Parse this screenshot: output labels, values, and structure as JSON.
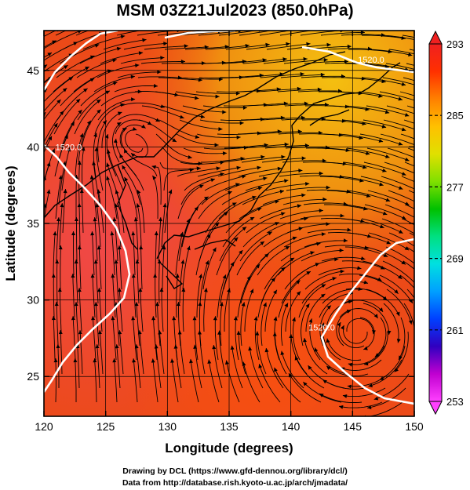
{
  "title": "MSM 03Z21Jul2023 (850.0hPa)",
  "x_axis": {
    "label": "Longitude (degrees)",
    "range": [
      120,
      150
    ],
    "ticks": [
      {
        "v": 120,
        "t": "120"
      },
      {
        "v": 125,
        "t": "125"
      },
      {
        "v": 130,
        "t": "130"
      },
      {
        "v": 135,
        "t": "135"
      },
      {
        "v": 140,
        "t": "140"
      },
      {
        "v": 145,
        "t": "145"
      },
      {
        "v": 150,
        "t": "150"
      }
    ]
  },
  "y_axis": {
    "label": "Latitude  (degrees)",
    "range": [
      22.4,
      47.6
    ],
    "ticks": [
      {
        "v": 25,
        "t": "25"
      },
      {
        "v": 30,
        "t": "30"
      },
      {
        "v": 35,
        "t": "35"
      },
      {
        "v": 40,
        "t": "40"
      },
      {
        "v": 45,
        "t": "45"
      }
    ]
  },
  "colorbar": {
    "min": 253,
    "max": 293,
    "labels": [
      {
        "v": 293,
        "t": "293"
      },
      {
        "v": 285,
        "t": "285"
      },
      {
        "v": 277,
        "t": "277"
      },
      {
        "v": 269,
        "t": "269"
      },
      {
        "v": 261,
        "t": "261"
      },
      {
        "v": 253,
        "t": "253"
      }
    ],
    "colors": [
      "#ff40ff",
      "#c000d0",
      "#3000c0",
      "#0040ff",
      "#00a0ff",
      "#00e0e0",
      "#00e080",
      "#00c000",
      "#80e000",
      "#e0e000",
      "#ffc000",
      "#ff8000",
      "#ff3000",
      "#f02020"
    ]
  },
  "contour_labels": [
    {
      "t": "1520.0",
      "lon": 122.0,
      "lat": 39.8
    },
    {
      "t": "1520.0",
      "lon": 146.5,
      "lat": 45.5
    },
    {
      "t": "1520.0",
      "lon": 142.5,
      "lat": 28.0
    }
  ],
  "footer": {
    "line1": "Drawing by DCL (https://www.gfd-dennou.org/library/dcl/)",
    "line2": "Data from http://database.rish.kyoto-u.ac.jp/arch/jmadata/"
  }
}
